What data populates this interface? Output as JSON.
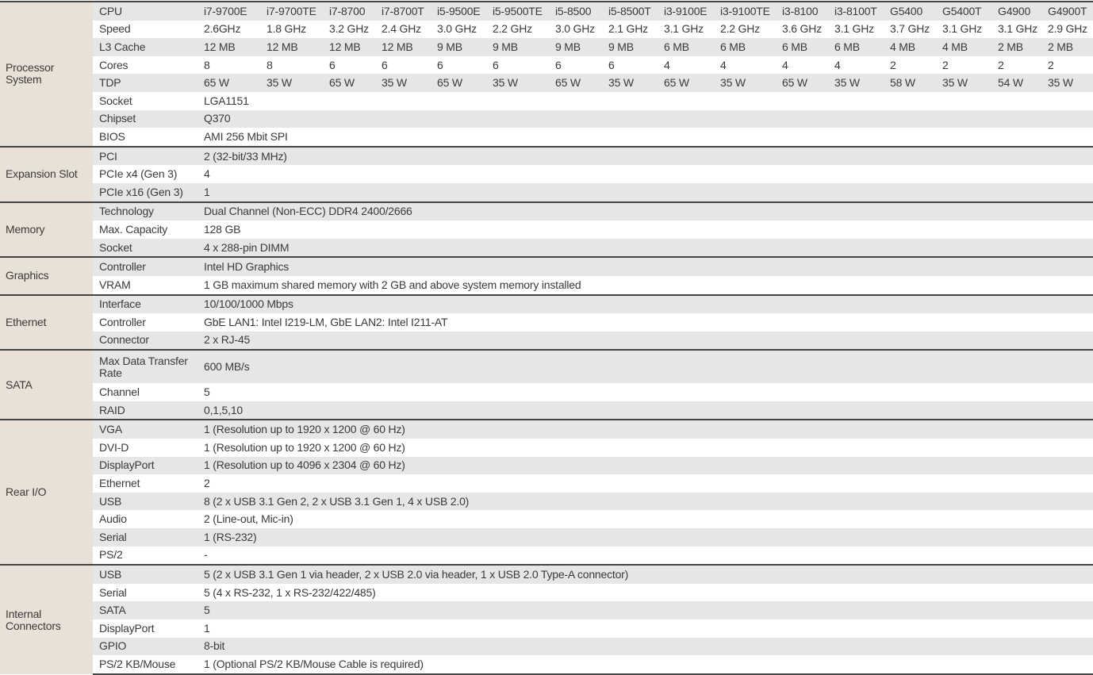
{
  "spec_table": {
    "sections": [
      {
        "name": "Processor System",
        "rows": [
          {
            "label": "CPU",
            "values": [
              "i7-9700E",
              "i7-9700TE",
              "i7-8700",
              "i7-8700T",
              "i5-9500E",
              "i5-9500TE",
              "i5-8500",
              "i5-8500T",
              "i3-9100E",
              "i3-9100TE",
              "i3-8100",
              "i3-8100T",
              "G5400",
              "G5400T",
              "G4900",
              "G4900T"
            ]
          },
          {
            "label": "Speed",
            "values": [
              "2.6GHz",
              "1.8 GHz",
              "3.2 GHz",
              "2.4 GHz",
              "3.0 GHz",
              "2.2 GHz",
              "3.0 GHz",
              "2.1 GHz",
              "3.1 GHz",
              "2.2 GHz",
              "3.6 GHz",
              "3.1 GHz",
              "3.7 GHz",
              "3.1 GHz",
              "3.1 GHz",
              "2.9 GHz"
            ]
          },
          {
            "label": "L3 Cache",
            "values": [
              "12 MB",
              "12 MB",
              "12 MB",
              "12 MB",
              "9 MB",
              "9 MB",
              "9 MB",
              "9 MB",
              "6 MB",
              "6 MB",
              "6 MB",
              "6 MB",
              "4 MB",
              "4 MB",
              "2 MB",
              "2 MB"
            ]
          },
          {
            "label": "Cores",
            "values": [
              "8",
              "8",
              "6",
              "6",
              "6",
              "6",
              "6",
              "6",
              "4",
              "4",
              "4",
              "4",
              "2",
              "2",
              "2",
              "2"
            ]
          },
          {
            "label": "TDP",
            "values": [
              "65 W",
              "35 W",
              "65 W",
              "35 W",
              "65 W",
              "35 W",
              "65 W",
              "35 W",
              "65 W",
              "35 W",
              "65 W",
              "35 W",
              "58 W",
              "35 W",
              "54 W",
              "35 W"
            ]
          },
          {
            "label": "Socket",
            "values": [
              "LGA1151"
            ]
          },
          {
            "label": "Chipset",
            "values": [
              "Q370"
            ]
          },
          {
            "label": "BIOS",
            "values": [
              "AMI 256 Mbit SPI"
            ]
          }
        ]
      },
      {
        "name": "Expansion Slot",
        "rows": [
          {
            "label": "PCI",
            "values": [
              "2 (32-bit/33 MHz)"
            ]
          },
          {
            "label": "PCIe x4 (Gen 3)",
            "values": [
              "4"
            ]
          },
          {
            "label": "PCIe x16 (Gen 3)",
            "values": [
              "1"
            ]
          }
        ]
      },
      {
        "name": "Memory",
        "rows": [
          {
            "label": "Technology",
            "values": [
              "Dual Channel (Non-ECC) DDR4 2400/2666"
            ]
          },
          {
            "label": "Max. Capacity",
            "values": [
              "128 GB"
            ]
          },
          {
            "label": "Socket",
            "values": [
              "4 x 288-pin DIMM"
            ]
          }
        ]
      },
      {
        "name": "Graphics",
        "rows": [
          {
            "label": "Controller",
            "values": [
              "Intel HD Graphics"
            ]
          },
          {
            "label": "VRAM",
            "values": [
              "1 GB maximum shared memory with 2 GB and above system memory installed"
            ]
          }
        ]
      },
      {
        "name": "Ethernet",
        "rows": [
          {
            "label": "Interface",
            "values": [
              "10/100/1000 Mbps"
            ]
          },
          {
            "label": "Controller",
            "values": [
              "GbE LAN1: Intel I219-LM, GbE LAN2: Intel I211-AT"
            ]
          },
          {
            "label": "Connector",
            "values": [
              "2 x RJ-45"
            ]
          }
        ]
      },
      {
        "name": "SATA",
        "rows": [
          {
            "label": "Max Data Transfer Rate",
            "values": [
              "600 MB/s"
            ]
          },
          {
            "label": "Channel",
            "values": [
              "5"
            ]
          },
          {
            "label": "RAID",
            "values": [
              "0,1,5,10"
            ]
          }
        ]
      },
      {
        "name": "Rear I/O",
        "rows": [
          {
            "label": "VGA",
            "values": [
              "1 (Resolution up to 1920 x 1200 @ 60 Hz)"
            ]
          },
          {
            "label": "DVI-D",
            "values": [
              "1 (Resolution up to 1920 x 1200 @ 60 Hz)"
            ]
          },
          {
            "label": "DisplayPort",
            "values": [
              "1 (Resolution up to 4096 x 2304 @ 60 Hz)"
            ]
          },
          {
            "label": "Ethernet",
            "values": [
              "2"
            ]
          },
          {
            "label": "USB",
            "values": [
              "8 (2 x USB 3.1 Gen 2, 2 x USB 3.1 Gen 1, 4 x USB 2.0)"
            ]
          },
          {
            "label": "Audio",
            "values": [
              "2 (Line-out, Mic-in)"
            ]
          },
          {
            "label": "Serial",
            "values": [
              "1 (RS-232)"
            ]
          },
          {
            "label": "PS/2",
            "values": [
              "-"
            ]
          }
        ]
      },
      {
        "name": "Internal Connectors",
        "rows": [
          {
            "label": "USB",
            "values": [
              "5 (2 x USB 3.1 Gen 1 via header, 2 x USB 2.0 via header, 1 x USB 2.0 Type-A connector)"
            ]
          },
          {
            "label": "Serial",
            "values": [
              "5 (4 x RS-232, 1 x RS-232/422/485)"
            ]
          },
          {
            "label": "SATA",
            "values": [
              "5"
            ]
          },
          {
            "label": "DisplayPort",
            "values": [
              "1"
            ]
          },
          {
            "label": "GPIO",
            "values": [
              "8-bit"
            ]
          },
          {
            "label": "PS/2 KB/Mouse",
            "values": [
              "1 (Optional PS/2 KB/Mouse Cable is required)"
            ]
          }
        ]
      }
    ],
    "colors": {
      "category_bg": "#e9e0d7",
      "stripe_gray": "#e6e6e6",
      "stripe_white": "#ffffff",
      "rule": "#444444"
    }
  }
}
